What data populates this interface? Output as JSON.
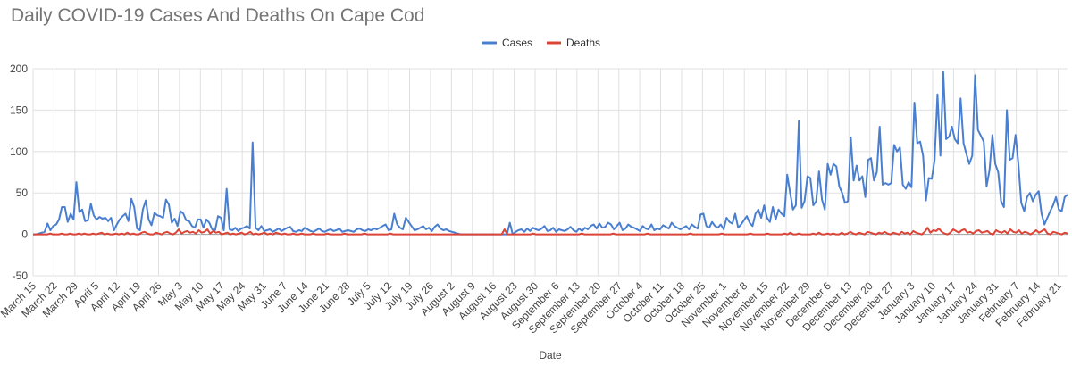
{
  "chart_data": {
    "type": "line",
    "title": "Daily COVID-19 Cases And Deaths On Cape Cod",
    "xlabel": "Date",
    "ylabel": "",
    "ylim": [
      -50,
      200
    ],
    "yticks": [
      -50,
      0,
      50,
      100,
      150,
      200
    ],
    "grid": true,
    "legend_position": "top",
    "x_tick_labels": [
      "March 15",
      "March 22",
      "March 29",
      "April 5",
      "April 12",
      "April 19",
      "April 26",
      "May 3",
      "May 10",
      "May 17",
      "May 24",
      "May 31",
      "June 7",
      "June 14",
      "June 21",
      "June 28",
      "July 5",
      "July 12",
      "July 19",
      "July 26",
      "August 2",
      "August 9",
      "August 16",
      "August 23",
      "August 30",
      "September 6",
      "September 13",
      "September 20",
      "September 27",
      "October 4",
      "October 11",
      "October 18",
      "October 25",
      "November 1",
      "November 8",
      "November 15",
      "November 22",
      "November 29",
      "December 6",
      "December 13",
      "December 20",
      "December 27",
      "January 3",
      "January 10",
      "January 17",
      "January 24",
      "January 31",
      "February 7",
      "February 14",
      "February 21"
    ],
    "series": [
      {
        "name": "Cases",
        "color": "#4a7fd0",
        "values": [
          0,
          0,
          1,
          2,
          3,
          13,
          5,
          10,
          12,
          18,
          33,
          33,
          15,
          25,
          18,
          63,
          27,
          30,
          16,
          17,
          37,
          23,
          18,
          21,
          19,
          20,
          16,
          20,
          5,
          12,
          18,
          22,
          25,
          16,
          43,
          33,
          7,
          5,
          30,
          41,
          18,
          11,
          26,
          23,
          22,
          20,
          42,
          36,
          14,
          19,
          10,
          28,
          25,
          17,
          16,
          10,
          8,
          18,
          18,
          8,
          18,
          14,
          6,
          5,
          22,
          20,
          5,
          55,
          6,
          5,
          8,
          4,
          7,
          8,
          10,
          7,
          111,
          8,
          5,
          10,
          4,
          5,
          6,
          3,
          5,
          7,
          4,
          6,
          8,
          9,
          4,
          3,
          5,
          4,
          8,
          6,
          4,
          3,
          5,
          7,
          4,
          3,
          5,
          6,
          4,
          5,
          7,
          3,
          4,
          5,
          4,
          3,
          6,
          7,
          5,
          4,
          6,
          5,
          7,
          6,
          8,
          10,
          12,
          5,
          6,
          25,
          12,
          8,
          6,
          20,
          15,
          10,
          5,
          6,
          8,
          10,
          6,
          8,
          4,
          9,
          12,
          7,
          5,
          6,
          4,
          3,
          2,
          1,
          0,
          0,
          0,
          0,
          0,
          0,
          0,
          0,
          0,
          0,
          0,
          0,
          0,
          0,
          0,
          0,
          0,
          14,
          0,
          3,
          5,
          6,
          3,
          7,
          4,
          8,
          6,
          5,
          7,
          10,
          4,
          5,
          8,
          3,
          6,
          5,
          4,
          6,
          9,
          5,
          3,
          7,
          4,
          8,
          6,
          10,
          12,
          7,
          13,
          8,
          9,
          14,
          12,
          6,
          10,
          14,
          5,
          7,
          12,
          9,
          8,
          6,
          4,
          10,
          7,
          6,
          12,
          5,
          7,
          6,
          11,
          9,
          7,
          14,
          10,
          8,
          6,
          8,
          10,
          6,
          12,
          9,
          7,
          24,
          25,
          10,
          8,
          15,
          10,
          8,
          12,
          6,
          20,
          15,
          13,
          25,
          8,
          12,
          17,
          22,
          14,
          10,
          25,
          30,
          20,
          35,
          20,
          15,
          33,
          18,
          30,
          25,
          22,
          72,
          50,
          30,
          35,
          137,
          32,
          40,
          70,
          68,
          35,
          40,
          76,
          42,
          30,
          85,
          72,
          85,
          82,
          58,
          50,
          38,
          40,
          117,
          65,
          83,
          65,
          70,
          45,
          90,
          92,
          65,
          75,
          130,
          60,
          62,
          60,
          62,
          108,
          100,
          105,
          60,
          55,
          63,
          57,
          159,
          110,
          112,
          95,
          41,
          68,
          67,
          90,
          169,
          95,
          196,
          115,
          118,
          130,
          115,
          110,
          164,
          110,
          97,
          85,
          95,
          192,
          126,
          119,
          112,
          58,
          78,
          120,
          85,
          75,
          40,
          33,
          150,
          90,
          92,
          120,
          85,
          38,
          28,
          45,
          50,
          40,
          48,
          52,
          25,
          12,
          20,
          28,
          35,
          45,
          30,
          28,
          45,
          48
        ]
      },
      {
        "name": "Deaths",
        "color": "#db4437",
        "values": [
          0,
          0,
          0,
          0,
          0,
          0,
          1,
          0,
          0,
          0,
          1,
          0,
          0,
          1,
          0,
          0,
          1,
          0,
          1,
          0,
          0,
          1,
          0,
          1,
          2,
          0,
          1,
          0,
          0,
          1,
          0,
          1,
          0,
          2,
          0,
          1,
          0,
          0,
          2,
          3,
          1,
          0,
          0,
          2,
          1,
          0,
          2,
          3,
          1,
          0,
          2,
          6,
          1,
          3,
          4,
          2,
          3,
          1,
          5,
          2,
          3,
          6,
          1,
          4,
          2,
          3,
          0,
          1,
          2,
          0,
          1,
          0,
          1,
          2,
          0,
          1,
          3,
          0,
          1,
          0,
          1,
          2,
          0,
          1,
          0,
          2,
          1,
          0,
          1,
          0,
          0,
          1,
          0,
          0,
          1,
          0,
          0,
          0,
          1,
          0,
          0,
          0,
          0,
          1,
          0,
          0,
          0,
          0,
          0,
          1,
          0,
          0,
          0,
          0,
          0,
          0,
          1,
          0,
          0,
          0,
          0,
          0,
          0,
          0,
          0,
          1,
          0,
          0,
          0,
          0,
          0,
          0,
          0,
          0,
          0,
          0,
          0,
          0,
          0,
          0,
          0,
          0,
          0,
          0,
          0,
          0,
          0,
          0,
          0,
          0,
          0,
          0,
          0,
          0,
          0,
          0,
          0,
          0,
          0,
          0,
          0,
          0,
          0,
          0,
          0,
          6,
          0,
          0,
          0,
          0,
          0,
          0,
          0,
          0,
          0,
          1,
          0,
          0,
          0,
          0,
          0,
          0,
          0,
          0,
          0,
          0,
          0,
          0,
          0,
          0,
          0,
          0,
          1,
          0,
          0,
          0,
          0,
          0,
          0,
          0,
          0,
          0,
          0,
          1,
          0,
          0,
          0,
          0,
          0,
          0,
          0,
          0,
          0,
          0,
          0,
          1,
          0,
          0,
          0,
          0,
          0,
          0,
          0,
          0,
          0,
          0,
          0,
          0,
          0,
          0,
          1,
          0,
          0,
          0,
          0,
          0,
          0,
          0,
          0,
          0,
          0,
          1,
          0,
          0,
          0,
          0,
          0,
          0,
          0,
          0,
          0,
          1,
          0,
          0,
          0,
          0,
          0,
          1,
          0,
          0,
          0,
          0,
          0,
          1,
          0,
          2,
          0,
          0,
          1,
          0,
          0,
          0,
          0,
          1,
          0,
          2,
          0,
          0,
          1,
          0,
          1,
          0,
          0,
          2,
          0,
          1,
          3,
          1,
          0,
          2,
          1,
          0,
          3,
          2,
          1,
          0,
          2,
          1,
          3,
          1,
          0,
          2,
          1,
          0,
          3,
          1,
          2,
          0,
          4,
          2,
          1,
          0,
          3,
          8,
          2,
          5,
          4,
          7,
          3,
          1,
          0,
          2,
          6,
          4,
          2,
          5,
          6,
          2,
          3,
          1,
          4,
          5,
          2,
          3,
          4,
          1,
          0,
          5,
          3,
          2,
          4,
          1,
          6,
          3,
          2,
          5,
          1,
          3,
          2,
          0,
          2,
          5,
          2,
          4,
          6,
          1,
          0,
          3,
          2,
          1,
          0,
          2,
          1
        ]
      }
    ]
  }
}
